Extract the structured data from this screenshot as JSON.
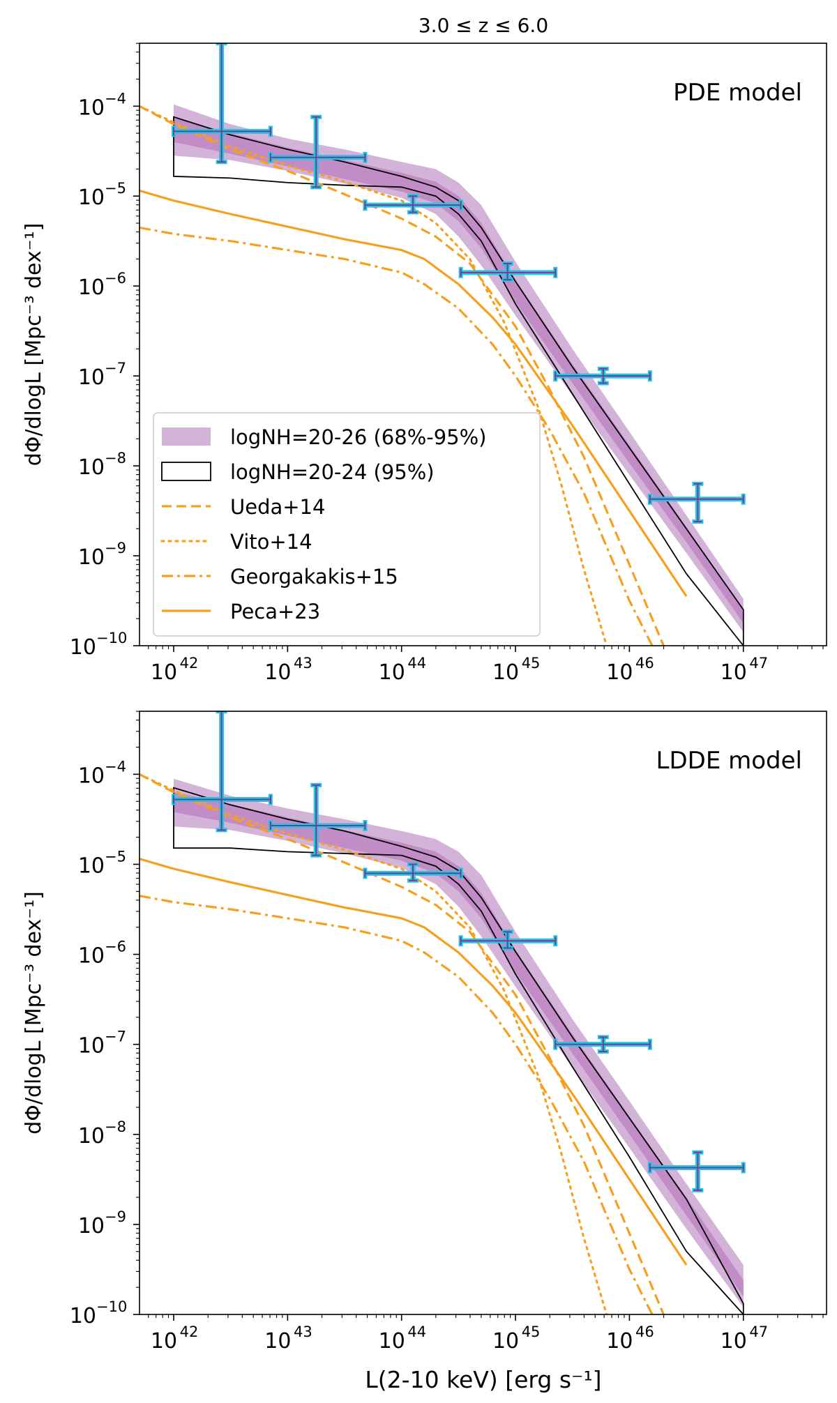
{
  "figure": {
    "title": "3.0 ≤ z ≤ 6.0",
    "xlabel": "L(2-10 keV) [erg s⁻¹]"
  },
  "chart_data": [
    {
      "type": "line",
      "panel": "top",
      "annotation": "PDE model",
      "ylabel": "dΦ/dlogL [Mpc⁻³ dex⁻¹]",
      "x_scale": "log",
      "y_scale": "log",
      "xlim_log10": [
        41.7,
        47.73
      ],
      "ylim_log10": [
        -10,
        -3.3
      ],
      "x_ticks": [
        {
          "log": 42,
          "base": "10",
          "exp": "42"
        },
        {
          "log": 43,
          "base": "10",
          "exp": "43"
        },
        {
          "log": 44,
          "base": "10",
          "exp": "44"
        },
        {
          "log": 45,
          "base": "10",
          "exp": "45"
        },
        {
          "log": 46,
          "base": "10",
          "exp": "46"
        },
        {
          "log": 47,
          "base": "10",
          "exp": "47"
        }
      ],
      "y_ticks": [
        {
          "log": -4,
          "base": "10",
          "exp": "−4"
        },
        {
          "log": -5,
          "base": "10",
          "exp": "−5"
        },
        {
          "log": -6,
          "base": "10",
          "exp": "−6"
        },
        {
          "log": -7,
          "base": "10",
          "exp": "−7"
        },
        {
          "log": -8,
          "base": "10",
          "exp": "−8"
        },
        {
          "log": -9,
          "base": "10",
          "exp": "−9"
        },
        {
          "log": -10,
          "base": "10",
          "exp": "−10"
        }
      ],
      "legend": {
        "position": "lower-left",
        "entries": [
          {
            "label": "logNH=20-26 (68%-95%)",
            "style": "band"
          },
          {
            "label": "logNH=20-24 (95%)",
            "style": "outline"
          },
          {
            "label": "Ueda+14",
            "style": "dashed"
          },
          {
            "label": "Vito+14",
            "style": "dotted"
          },
          {
            "label": "Georgakakis+15",
            "style": "dashdot"
          },
          {
            "label": "Peca+23",
            "style": "solid"
          }
        ]
      },
      "bands": {
        "x_log": [
          42.0,
          42.5,
          43.0,
          43.5,
          44.0,
          44.3,
          44.5,
          44.7,
          45.0,
          45.5,
          46.0,
          46.5,
          47.0
        ],
        "outer95": {
          "low": [
            -4.55,
            -4.6,
            -4.72,
            -4.86,
            -5.02,
            -5.2,
            -5.45,
            -5.77,
            -6.33,
            -7.22,
            -8.1,
            -8.97,
            -9.85
          ],
          "high": [
            -3.98,
            -4.2,
            -4.36,
            -4.48,
            -4.62,
            -4.7,
            -4.85,
            -5.1,
            -5.73,
            -6.7,
            -7.62,
            -8.55,
            -9.48
          ]
        },
        "inner68": {
          "low": [
            -4.4,
            -4.53,
            -4.67,
            -4.81,
            -4.95,
            -5.08,
            -5.28,
            -5.58,
            -6.18,
            -7.08,
            -7.97,
            -8.85,
            -9.75
          ],
          "high": [
            -4.13,
            -4.3,
            -4.46,
            -4.6,
            -4.74,
            -4.84,
            -5.0,
            -5.3,
            -5.93,
            -6.87,
            -7.77,
            -8.68,
            -9.6
          ]
        },
        "nh24": {
          "low": [
            -4.78,
            -4.8,
            -4.85,
            -4.88,
            -4.9,
            -5.0,
            -5.2,
            -5.5,
            -6.2,
            -7.2,
            -8.2,
            -9.2,
            -10.0
          ],
          "high": [
            -4.12,
            -4.32,
            -4.48,
            -4.62,
            -4.78,
            -4.9,
            -5.05,
            -5.35,
            -5.95,
            -6.9,
            -7.8,
            -8.7,
            -9.6
          ]
        }
      },
      "series": [
        {
          "name": "Ueda+14",
          "style": "dashed",
          "x": [
            41.7,
            42.0,
            42.5,
            43.0,
            43.5,
            44.0,
            44.3,
            44.6,
            45.0,
            45.3,
            45.6,
            46.0,
            46.3
          ],
          "y": [
            -4.0,
            -4.2,
            -4.48,
            -4.72,
            -4.98,
            -5.25,
            -5.45,
            -5.75,
            -6.45,
            -7.15,
            -7.9,
            -9.1,
            -10.0
          ]
        },
        {
          "name": "Vito+14",
          "style": "dotted",
          "x": [
            41.7,
            42.0,
            42.5,
            43.0,
            43.5,
            44.0,
            44.3,
            44.6,
            44.9,
            45.2,
            45.4,
            45.6,
            45.8
          ],
          "y": [
            -4.0,
            -4.18,
            -4.45,
            -4.66,
            -4.84,
            -5.05,
            -5.3,
            -5.7,
            -6.4,
            -7.35,
            -8.2,
            -9.15,
            -10.0
          ]
        },
        {
          "name": "Georgakakis+15",
          "style": "dashdot",
          "x": [
            41.7,
            42.0,
            42.5,
            43.0,
            43.5,
            44.0,
            44.2,
            44.5,
            44.8,
            45.0,
            45.3,
            45.6,
            46.0,
            46.2
          ],
          "y": [
            -5.35,
            -5.42,
            -5.5,
            -5.6,
            -5.7,
            -5.85,
            -5.98,
            -6.25,
            -6.65,
            -7.0,
            -7.6,
            -8.3,
            -9.5,
            -10.0
          ]
        },
        {
          "name": "Peca+23",
          "style": "solid",
          "x": [
            41.7,
            42.0,
            42.5,
            43.0,
            43.5,
            44.0,
            44.2,
            44.5,
            44.8,
            45.0,
            45.5,
            46.0,
            46.5
          ],
          "y": [
            -4.94,
            -5.05,
            -5.2,
            -5.34,
            -5.48,
            -5.6,
            -5.7,
            -5.98,
            -6.35,
            -6.65,
            -7.55,
            -8.5,
            -9.45
          ]
        }
      ],
      "data_points": [
        {
          "x_log": 42.42,
          "x_lo": 42.0,
          "x_hi": 42.85,
          "y_log": -4.28,
          "y_lo": -4.62,
          "y_hi": -3.3
        },
        {
          "x_log": 43.25,
          "x_lo": 42.85,
          "x_hi": 43.68,
          "y_log": -4.57,
          "y_lo": -4.9,
          "y_hi": -4.12
        },
        {
          "x_log": 44.1,
          "x_lo": 43.68,
          "x_hi": 44.52,
          "y_log": -5.1,
          "y_lo": -5.18,
          "y_hi": -5.0
        },
        {
          "x_log": 44.93,
          "x_lo": 44.52,
          "x_hi": 45.35,
          "y_log": -5.85,
          "y_lo": -5.93,
          "y_hi": -5.75
        },
        {
          "x_log": 45.77,
          "x_lo": 45.35,
          "x_hi": 46.18,
          "y_log": -7.0,
          "y_lo": -7.08,
          "y_hi": -6.92
        },
        {
          "x_log": 46.6,
          "x_lo": 46.18,
          "x_hi": 47.0,
          "y_log": -8.37,
          "y_lo": -8.62,
          "y_hi": -8.2
        }
      ]
    },
    {
      "type": "line",
      "panel": "bottom",
      "annotation": "LDDE model",
      "ylabel": "dΦ/dlogL [Mpc⁻³ dex⁻¹]",
      "x_scale": "log",
      "y_scale": "log",
      "xlim_log10": [
        41.7,
        47.73
      ],
      "ylim_log10": [
        -10,
        -3.3
      ],
      "x_ticks": [
        {
          "log": 42,
          "base": "10",
          "exp": "42"
        },
        {
          "log": 43,
          "base": "10",
          "exp": "43"
        },
        {
          "log": 44,
          "base": "10",
          "exp": "44"
        },
        {
          "log": 45,
          "base": "10",
          "exp": "45"
        },
        {
          "log": 46,
          "base": "10",
          "exp": "46"
        },
        {
          "log": 47,
          "base": "10",
          "exp": "47"
        }
      ],
      "y_ticks": [
        {
          "log": -4,
          "base": "10",
          "exp": "−4"
        },
        {
          "log": -5,
          "base": "10",
          "exp": "−5"
        },
        {
          "log": -6,
          "base": "10",
          "exp": "−6"
        },
        {
          "log": -7,
          "base": "10",
          "exp": "−7"
        },
        {
          "log": -8,
          "base": "10",
          "exp": "−8"
        },
        {
          "log": -9,
          "base": "10",
          "exp": "−9"
        },
        {
          "log": -10,
          "base": "10",
          "exp": "−10"
        }
      ],
      "bands": {
        "x_log": [
          42.0,
          42.5,
          43.0,
          43.5,
          44.0,
          44.3,
          44.5,
          44.7,
          45.0,
          45.5,
          46.0,
          46.5,
          47.0
        ],
        "outer95": {
          "low": [
            -4.58,
            -4.62,
            -4.74,
            -4.88,
            -5.04,
            -5.22,
            -5.47,
            -5.8,
            -6.36,
            -7.26,
            -8.15,
            -9.05,
            -9.92
          ],
          "high": [
            -4.05,
            -4.24,
            -4.38,
            -4.5,
            -4.63,
            -4.72,
            -4.86,
            -5.12,
            -5.75,
            -6.72,
            -7.63,
            -8.55,
            -9.45
          ]
        },
        "inner68": {
          "low": [
            -4.42,
            -4.54,
            -4.68,
            -4.82,
            -4.96,
            -5.1,
            -5.3,
            -5.6,
            -6.2,
            -7.1,
            -8.0,
            -8.9,
            -9.8
          ],
          "high": [
            -4.2,
            -4.33,
            -4.48,
            -4.62,
            -4.76,
            -4.86,
            -5.02,
            -5.32,
            -5.95,
            -6.89,
            -7.8,
            -8.7,
            -9.62
          ]
        },
        "nh24": {
          "low": [
            -4.82,
            -4.82,
            -4.86,
            -4.88,
            -4.9,
            -5.02,
            -5.22,
            -5.52,
            -6.22,
            -7.25,
            -8.25,
            -9.3,
            -10.0
          ],
          "high": [
            -4.15,
            -4.34,
            -4.5,
            -4.63,
            -4.8,
            -4.92,
            -5.07,
            -5.37,
            -5.97,
            -6.92,
            -7.82,
            -8.72,
            -9.88
          ]
        }
      },
      "series": [
        {
          "name": "Ueda+14",
          "style": "dashed",
          "x": [
            41.7,
            42.0,
            42.5,
            43.0,
            43.5,
            44.0,
            44.3,
            44.6,
            45.0,
            45.3,
            45.6,
            46.0,
            46.3
          ],
          "y": [
            -4.0,
            -4.2,
            -4.48,
            -4.72,
            -4.98,
            -5.25,
            -5.45,
            -5.75,
            -6.45,
            -7.15,
            -7.9,
            -9.1,
            -10.0
          ]
        },
        {
          "name": "Vito+14",
          "style": "dotted",
          "x": [
            41.7,
            42.0,
            42.5,
            43.0,
            43.5,
            44.0,
            44.3,
            44.6,
            44.9,
            45.2,
            45.4,
            45.6,
            45.8
          ],
          "y": [
            -4.0,
            -4.18,
            -4.45,
            -4.66,
            -4.84,
            -5.05,
            -5.3,
            -5.7,
            -6.4,
            -7.35,
            -8.2,
            -9.15,
            -10.0
          ]
        },
        {
          "name": "Georgakakis+15",
          "style": "dashdot",
          "x": [
            41.7,
            42.0,
            42.5,
            43.0,
            43.5,
            44.0,
            44.2,
            44.5,
            44.8,
            45.0,
            45.3,
            45.6,
            46.0,
            46.2
          ],
          "y": [
            -5.35,
            -5.42,
            -5.5,
            -5.6,
            -5.7,
            -5.85,
            -5.98,
            -6.25,
            -6.65,
            -7.0,
            -7.6,
            -8.3,
            -9.5,
            -10.0
          ]
        },
        {
          "name": "Peca+23",
          "style": "solid",
          "x": [
            41.7,
            42.0,
            42.5,
            43.0,
            43.5,
            44.0,
            44.2,
            44.5,
            44.8,
            45.0,
            45.5,
            46.0,
            46.5
          ],
          "y": [
            -4.94,
            -5.05,
            -5.2,
            -5.34,
            -5.48,
            -5.6,
            -5.7,
            -5.98,
            -6.35,
            -6.65,
            -7.55,
            -8.5,
            -9.45
          ]
        }
      ],
      "data_points": [
        {
          "x_log": 42.42,
          "x_lo": 42.0,
          "x_hi": 42.85,
          "y_log": -4.28,
          "y_lo": -4.62,
          "y_hi": -3.3
        },
        {
          "x_log": 43.25,
          "x_lo": 42.85,
          "x_hi": 43.68,
          "y_log": -4.57,
          "y_lo": -4.9,
          "y_hi": -4.12
        },
        {
          "x_log": 44.1,
          "x_lo": 43.68,
          "x_hi": 44.52,
          "y_log": -5.1,
          "y_lo": -5.18,
          "y_hi": -5.0
        },
        {
          "x_log": 44.93,
          "x_lo": 44.52,
          "x_hi": 45.35,
          "y_log": -5.85,
          "y_lo": -5.93,
          "y_hi": -5.75
        },
        {
          "x_log": 45.77,
          "x_lo": 45.35,
          "x_hi": 46.18,
          "y_log": -7.0,
          "y_lo": -7.08,
          "y_hi": -6.92
        },
        {
          "x_log": 46.6,
          "x_lo": 46.18,
          "x_hi": 47.0,
          "y_log": -8.37,
          "y_lo": -8.62,
          "y_hi": -8.2
        }
      ]
    }
  ],
  "colors": {
    "band_outer": "#d4b3d8",
    "band_inner": "#c28cc6",
    "model_orange": "#f5a020",
    "errorbar_outer": "#22c6e6",
    "errorbar_inner": "#7b3a8a",
    "outline": "#000000"
  }
}
